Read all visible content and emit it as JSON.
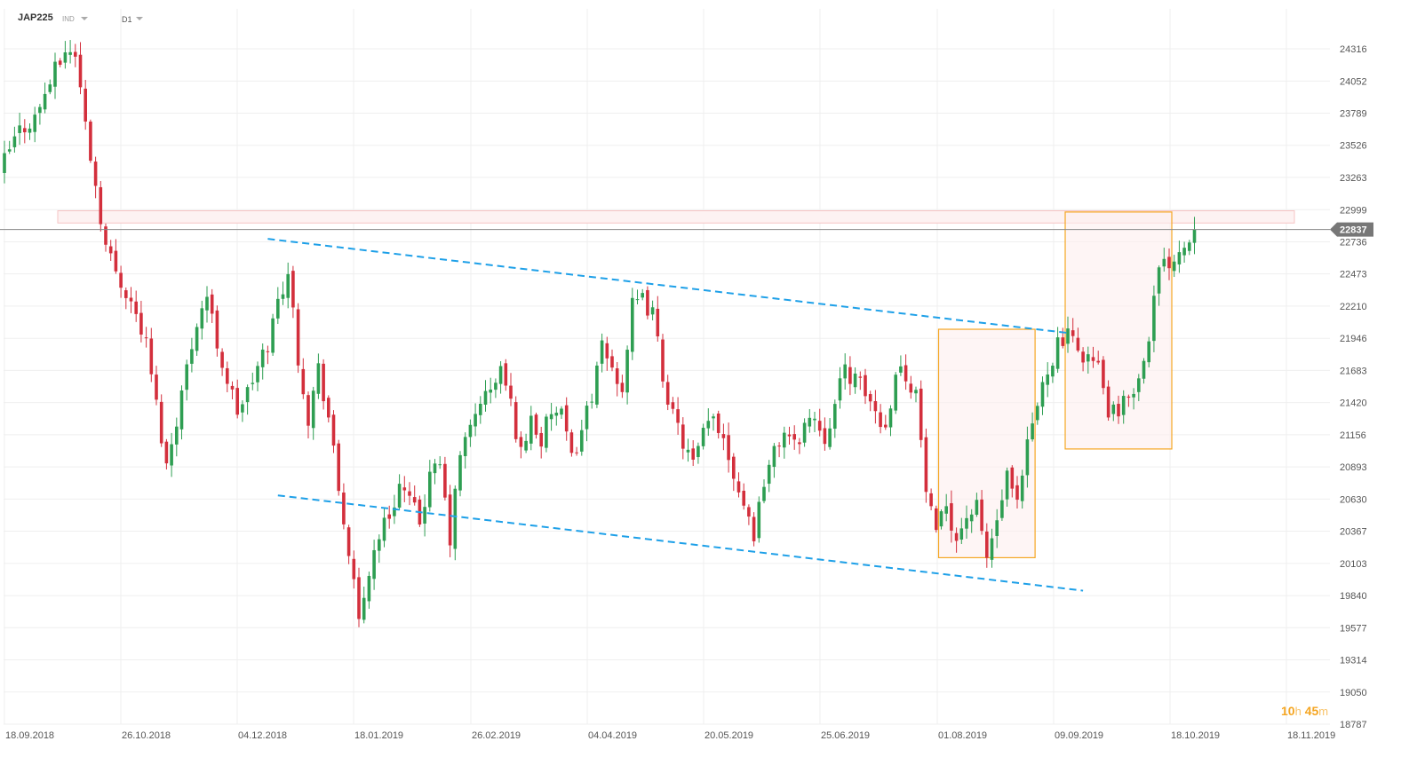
{
  "header": {
    "symbol": "JAP225",
    "type": "IND",
    "timeframe": "D1"
  },
  "timer": {
    "hours": "10",
    "hours_unit": "h",
    "minutes": "45",
    "minutes_unit": "m"
  },
  "colors": {
    "up": "#2e9e52",
    "down": "#d32f3c",
    "grid": "#efefef",
    "trend": "#1ea0e8",
    "box": "#f5a623",
    "boxfill": "#fdeeee",
    "zone": "#f6c4c4",
    "price_label_bg": "#777777"
  },
  "chart_data": {
    "type": "candlestick",
    "instrument": "JAP225",
    "timeframe": "D1",
    "ylim": [
      18787,
      24500
    ],
    "y_ticks": [
      24316,
      24052,
      23789,
      23526,
      23263,
      22999,
      22736,
      22473,
      22210,
      21946,
      21683,
      21420,
      21156,
      20893,
      20630,
      20367,
      20103,
      19840,
      19577,
      19314,
      19050,
      18787
    ],
    "x_ticks": [
      "18.09.2018",
      "26.10.2018",
      "04.12.2018",
      "18.01.2019",
      "26.02.2019",
      "04.04.2019",
      "20.05.2019",
      "25.06.2019",
      "01.08.2019",
      "09.09.2019",
      "18.10.2019",
      "18.11.2019"
    ],
    "current_price": 22837,
    "anchor_closes": [
      [
        0,
        23400
      ],
      [
        3,
        23650
      ],
      [
        6,
        23750
      ],
      [
        9,
        24050
      ],
      [
        12,
        24300
      ],
      [
        14,
        24280
      ],
      [
        16,
        23700
      ],
      [
        18,
        23200
      ],
      [
        20,
        22700
      ],
      [
        22,
        22500
      ],
      [
        25,
        22250
      ],
      [
        28,
        21900
      ],
      [
        30,
        21400
      ],
      [
        32,
        20900
      ],
      [
        34,
        21300
      ],
      [
        36,
        21700
      ],
      [
        38,
        22100
      ],
      [
        40,
        22300
      ],
      [
        42,
        21900
      ],
      [
        44,
        21600
      ],
      [
        46,
        21350
      ],
      [
        48,
        21500
      ],
      [
        52,
        21900
      ],
      [
        54,
        22250
      ],
      [
        56,
        22500
      ],
      [
        58,
        21800
      ],
      [
        60,
        21300
      ],
      [
        62,
        21700
      ],
      [
        64,
        21300
      ],
      [
        66,
        20700
      ],
      [
        68,
        20200
      ],
      [
        70,
        19600
      ],
      [
        72,
        20050
      ],
      [
        74,
        20350
      ],
      [
        76,
        20500
      ],
      [
        78,
        20750
      ],
      [
        80,
        20600
      ],
      [
        82,
        20450
      ],
      [
        84,
        20800
      ],
      [
        86,
        20900
      ],
      [
        88,
        20300
      ],
      [
        90,
        21000
      ],
      [
        92,
        21200
      ],
      [
        94,
        21450
      ],
      [
        96,
        21500
      ],
      [
        98,
        21700
      ],
      [
        100,
        21400
      ],
      [
        102,
        21000
      ],
      [
        104,
        21300
      ],
      [
        106,
        21100
      ],
      [
        108,
        21350
      ],
      [
        110,
        21300
      ],
      [
        112,
        20950
      ],
      [
        114,
        21200
      ],
      [
        116,
        21500
      ],
      [
        118,
        21850
      ],
      [
        120,
        21700
      ],
      [
        122,
        21550
      ],
      [
        124,
        22200
      ],
      [
        126,
        22250
      ],
      [
        128,
        22150
      ],
      [
        130,
        21650
      ],
      [
        132,
        21300
      ],
      [
        134,
        21100
      ],
      [
        136,
        20900
      ],
      [
        138,
        21150
      ],
      [
        140,
        21300
      ],
      [
        142,
        21150
      ],
      [
        144,
        20850
      ],
      [
        146,
        20600
      ],
      [
        148,
        20350
      ],
      [
        150,
        20800
      ],
      [
        152,
        21000
      ],
      [
        154,
        21200
      ],
      [
        156,
        21050
      ],
      [
        158,
        21250
      ],
      [
        160,
        21300
      ],
      [
        162,
        21150
      ],
      [
        164,
        21400
      ],
      [
        166,
        21700
      ],
      [
        168,
        21600
      ],
      [
        170,
        21500
      ],
      [
        172,
        21350
      ],
      [
        174,
        21200
      ],
      [
        176,
        21700
      ],
      [
        178,
        21650
      ],
      [
        180,
        21500
      ],
      [
        182,
        20700
      ],
      [
        184,
        20300
      ],
      [
        186,
        20600
      ],
      [
        188,
        20300
      ],
      [
        190,
        20500
      ],
      [
        192,
        20550
      ],
      [
        194,
        20150
      ],
      [
        196,
        20450
      ],
      [
        198,
        20800
      ],
      [
        200,
        20550
      ],
      [
        202,
        21050
      ],
      [
        204,
        21400
      ],
      [
        206,
        21700
      ],
      [
        208,
        21900
      ],
      [
        210,
        21950
      ],
      [
        212,
        21850
      ],
      [
        214,
        21800
      ],
      [
        216,
        21700
      ],
      [
        218,
        21350
      ],
      [
        220,
        21300
      ],
      [
        222,
        21500
      ],
      [
        224,
        21600
      ],
      [
        226,
        22000
      ],
      [
        228,
        22500
      ],
      [
        230,
        22580
      ],
      [
        232,
        22680
      ],
      [
        234,
        22750
      ],
      [
        235,
        22837
      ]
    ],
    "resistance_zone": [
      22890,
      22990
    ],
    "trend_lines": [
      {
        "name": "upper",
        "from": [
          52,
          22760
        ],
        "to": [
          210,
          21990
        ]
      },
      {
        "name": "lower",
        "from": [
          54,
          20660
        ],
        "to": [
          213,
          19880
        ]
      }
    ],
    "boxes": [
      {
        "from_index": 185,
        "to_index": 203,
        "low": 20150,
        "high": 22020
      },
      {
        "from_index": 210,
        "to_index": 230,
        "low": 21040,
        "high": 22980
      }
    ]
  }
}
